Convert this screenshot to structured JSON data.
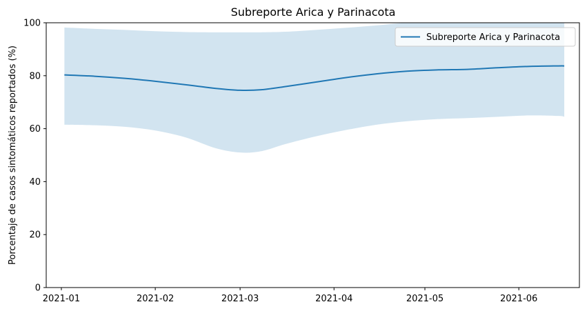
{
  "chart_data": {
    "type": "line",
    "title": "Subreporte Arica y Parinacota",
    "xlabel": "",
    "ylabel": "Porcentaje de casos sintomáticos reportados (%)",
    "ylim": [
      0,
      100
    ],
    "yticks": [
      "0",
      "20",
      "40",
      "60",
      "80",
      "100"
    ],
    "xlim": [
      "2020-12-27",
      "2021-06-21"
    ],
    "xticks": [
      {
        "date": "2021-01-01",
        "label": "2021-01"
      },
      {
        "date": "2021-02-01",
        "label": "2021-02"
      },
      {
        "date": "2021-03-01",
        "label": "2021-03"
      },
      {
        "date": "2021-04-01",
        "label": "2021-04"
      },
      {
        "date": "2021-05-01",
        "label": "2021-05"
      },
      {
        "date": "2021-06-01",
        "label": "2021-06"
      }
    ],
    "legend_position": "top-right",
    "grid": false,
    "colors": {
      "line": "#1f77b4",
      "band": "#1f77b4",
      "band_opacity": 0.2
    },
    "series": [
      {
        "name": "Subreporte Arica y Parinacota",
        "x": [
          "2021-01-02",
          "2021-01-12",
          "2021-01-22",
          "2021-02-01",
          "2021-02-11",
          "2021-02-21",
          "2021-03-01",
          "2021-03-08",
          "2021-03-16",
          "2021-03-26",
          "2021-04-05",
          "2021-04-15",
          "2021-04-25",
          "2021-05-05",
          "2021-05-15",
          "2021-05-25",
          "2021-06-04",
          "2021-06-14",
          "2021-06-16"
        ],
        "y": [
          80.3,
          79.8,
          79.0,
          77.9,
          76.6,
          75.2,
          74.5,
          74.7,
          75.9,
          77.6,
          79.3,
          80.7,
          81.7,
          82.2,
          82.4,
          83.0,
          83.5,
          83.7,
          83.7
        ],
        "lower": [
          61.5,
          61.3,
          60.7,
          59.3,
          56.7,
          52.6,
          51.0,
          51.5,
          54.2,
          57.1,
          59.5,
          61.5,
          62.8,
          63.6,
          64.0,
          64.5,
          65.0,
          64.8,
          64.5
        ],
        "upper": [
          98.2,
          97.7,
          97.3,
          96.8,
          96.5,
          96.4,
          96.4,
          96.4,
          96.6,
          97.3,
          98.1,
          99.0,
          100.0,
          100.0,
          100.0,
          100.0,
          100.0,
          100.0,
          100.0
        ]
      }
    ]
  }
}
